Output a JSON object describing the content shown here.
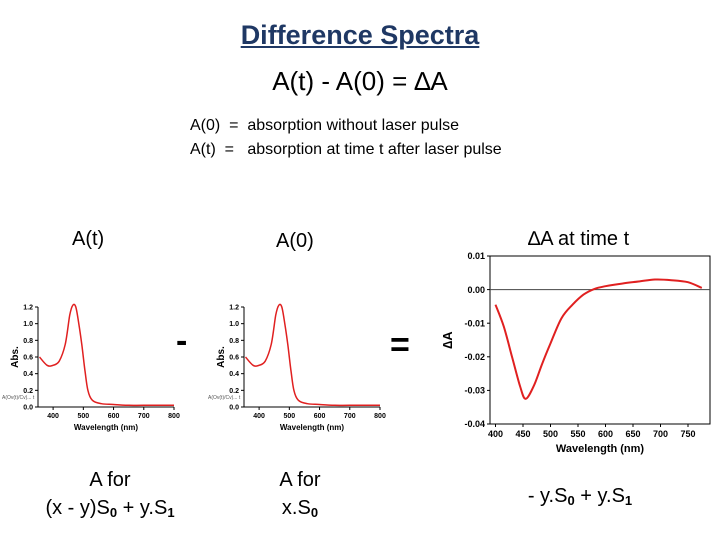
{
  "title": "Difference Spectra",
  "equation": "A(t)  -  A(0)  =  ∆A",
  "definitions": [
    "A(0)  =  absorption without laser pulse",
    "A(t)  =   absorption at time t after laser pulse"
  ],
  "panel_labels": {
    "left": "A(t)",
    "middle": "A(0)",
    "right": "∆A at time t"
  },
  "operators": {
    "minus": "-",
    "equals": "="
  },
  "captions": {
    "left": {
      "line1": "A for",
      "line2_prefix": "(x - y)S",
      "line2_sub1": "0",
      "line2_mid": " + y.S",
      "line2_sub2": "1"
    },
    "middle": {
      "line1": "A for",
      "line2_prefix": "x.S",
      "line2_sub1": "0"
    },
    "right": {
      "line1_prefix": "- y.S",
      "line1_sub1": "0",
      "line1_mid": " + y.S",
      "line1_sub2": "1"
    }
  },
  "colors": {
    "title": "#1f3864",
    "curve": "#e02020"
  },
  "chart_data": [
    {
      "type": "line",
      "name": "A(t) absorbance spectrum",
      "xlabel": "Wavelength (nm)",
      "ylabel": "Abs.",
      "ylabel_overlay": "A(Ov(t)/Cv)... t",
      "xlim": [
        350,
        800
      ],
      "ylim": [
        0,
        1.2
      ],
      "xticks": [
        "400",
        "500",
        "600",
        "700",
        "800"
      ],
      "yticks": [
        "0.0",
        "0.2",
        "0.4",
        "0.6",
        "0.8",
        "1.0",
        "1.2"
      ],
      "x": [
        355,
        380,
        400,
        420,
        440,
        455,
        465,
        475,
        485,
        495,
        505,
        515,
        530,
        560,
        600,
        650,
        700,
        800
      ],
      "y": [
        0.6,
        0.5,
        0.5,
        0.55,
        0.75,
        1.1,
        1.22,
        1.2,
        1.0,
        0.75,
        0.45,
        0.2,
        0.08,
        0.04,
        0.03,
        0.02,
        0.02,
        0.02
      ]
    },
    {
      "type": "line",
      "name": "A(0) absorbance spectrum",
      "xlabel": "Wavelength (nm)",
      "ylabel": "Abs.",
      "ylabel_overlay": "A(Ov(t)/Cv)... t",
      "xlim": [
        350,
        800
      ],
      "ylim": [
        0,
        1.2
      ],
      "xticks": [
        "400",
        "500",
        "600",
        "700",
        "800"
      ],
      "yticks": [
        "0.0",
        "0.2",
        "0.4",
        "0.6",
        "0.8",
        "1.0",
        "1.2"
      ],
      "x": [
        355,
        380,
        400,
        420,
        440,
        455,
        465,
        475,
        485,
        495,
        505,
        515,
        530,
        560,
        600,
        650,
        700,
        800
      ],
      "y": [
        0.6,
        0.5,
        0.5,
        0.55,
        0.75,
        1.1,
        1.22,
        1.2,
        1.0,
        0.75,
        0.45,
        0.2,
        0.08,
        0.04,
        0.03,
        0.02,
        0.02,
        0.02
      ]
    },
    {
      "type": "line",
      "name": "Difference spectrum ∆A",
      "xlabel": "Wavelength (nm)",
      "ylabel": "∆A",
      "xlim": [
        390,
        790
      ],
      "ylim": [
        -0.04,
        0.01
      ],
      "xticks": [
        "400",
        "450",
        "500",
        "550",
        "600",
        "650",
        "700",
        "750"
      ],
      "yticks": [
        "0.01",
        "0.00",
        "-0.01",
        "-0.02",
        "-0.03",
        "-0.04"
      ],
      "zero_line": true,
      "x": [
        400,
        415,
        430,
        445,
        455,
        470,
        485,
        500,
        520,
        540,
        560,
        580,
        600,
        630,
        660,
        690,
        720,
        750,
        775
      ],
      "y": [
        -0.0045,
        -0.011,
        -0.02,
        -0.029,
        -0.0325,
        -0.0285,
        -0.022,
        -0.016,
        -0.0085,
        -0.0045,
        -0.0015,
        0.0002,
        0.001,
        0.0018,
        0.0024,
        0.003,
        0.0028,
        0.0022,
        0.0005
      ]
    }
  ]
}
